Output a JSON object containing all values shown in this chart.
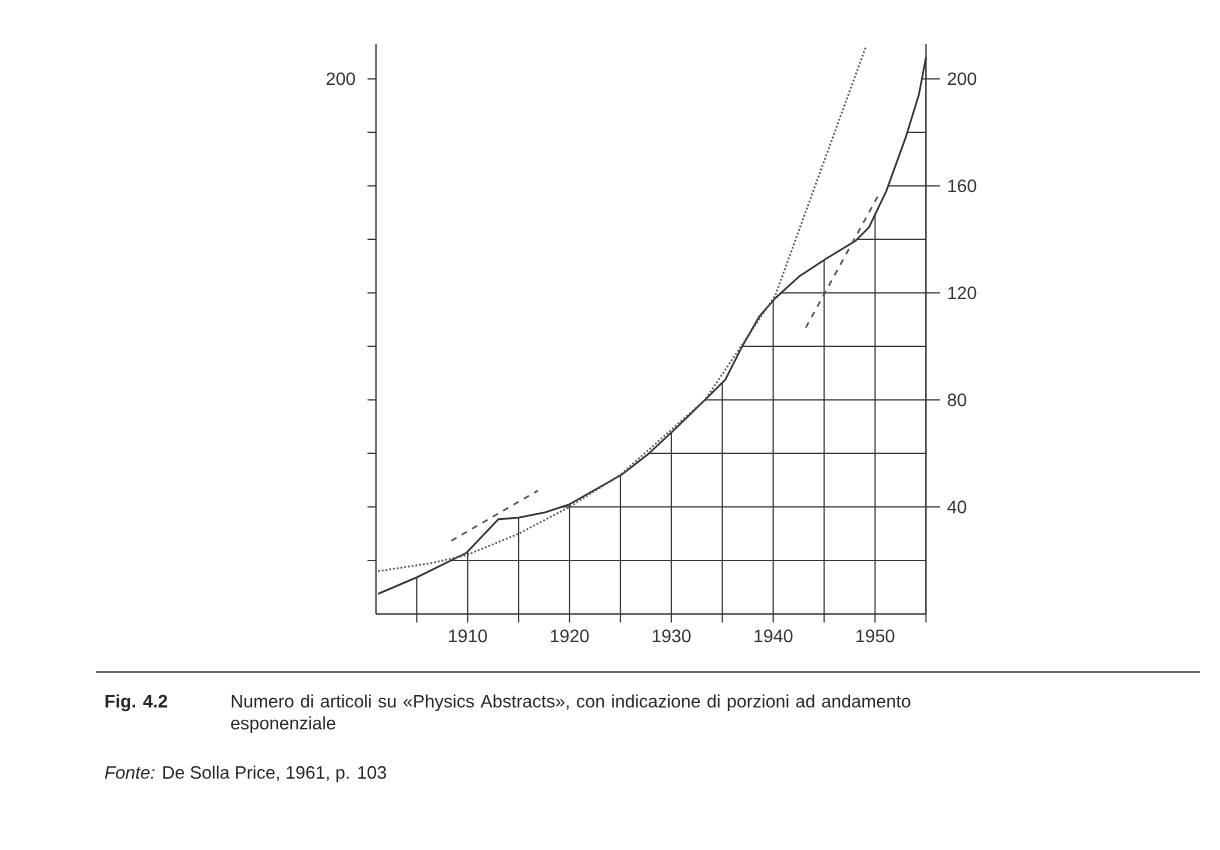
{
  "chart_data": {
    "type": "line",
    "annotations": [
      "200",
      "Fig. 4.2",
      "Numero di articoli su «Physics Abstracts», con indicazione di porzioni ad andamento esponenziale",
      "*Fonte:* De Solla Price, 1961, p. 103"
    ],
    "series": [
      {
        "color": "#333333",
        "line_style": "solid",
        "x": [
          1901.2,
          1905,
          1909.9,
          1913,
          1915,
          1917.6,
          1920,
          1925.1,
          1927.8,
          1930.2,
          1933.3,
          1935.3,
          1936.9,
          1938.6,
          1940.2,
          1942.5,
          1945.3,
          1948.1,
          1949.4,
          1951.1,
          1953,
          1954.3,
          1955
        ],
        "values": [
          7.5,
          13.7,
          22.9,
          35.4,
          36,
          38,
          41,
          52,
          60,
          68.5,
          80,
          87.6,
          99.6,
          111,
          118,
          126,
          133,
          139.5,
          144.5,
          158,
          178,
          194,
          208
        ]
      },
      {
        "color": "#555555",
        "line_style": "dotted",
        "x": [
          1901.2,
          1906.4,
          1909.9,
          1915,
          1920,
          1925,
          1933.3,
          1940.2,
          1944.5,
          1949.1
        ],
        "values": [
          16,
          19,
          22,
          30,
          40,
          52,
          80,
          119,
          164,
          212
        ]
      },
      {
        "color": "#555555",
        "line_style": "dashed",
        "x": [
          1908.4,
          1916.9
        ],
        "values": [
          27.4,
          46.1
        ]
      },
      {
        "color": "#555555",
        "line_style": "dashed",
        "x": [
          1943.2,
          1950.4
        ],
        "values": [
          107,
          157
        ]
      }
    ],
    "xlim": [
      1901,
      1955
    ],
    "ylim": [
      0,
      213
    ],
    "xticks": [
      {
        "value": 1905,
        "label": null
      },
      1910,
      {
        "value": 1915,
        "label": null
      },
      1920,
      {
        "value": 1925,
        "label": null
      },
      1930,
      {
        "value": 1935,
        "label": null
      },
      1940,
      {
        "value": 1945,
        "label": null
      },
      1950,
      {
        "value": 1955,
        "label": null
      }
    ],
    "yticks": [
      {
        "value": 20,
        "label": null
      },
      40,
      {
        "value": 60,
        "label": null
      },
      80,
      {
        "value": 100,
        "label": null
      },
      120,
      {
        "value": 140,
        "label": null
      },
      160,
      {
        "value": 180,
        "label": null
      },
      200
    ],
    "grid": true,
    "marker": "none"
  }
}
